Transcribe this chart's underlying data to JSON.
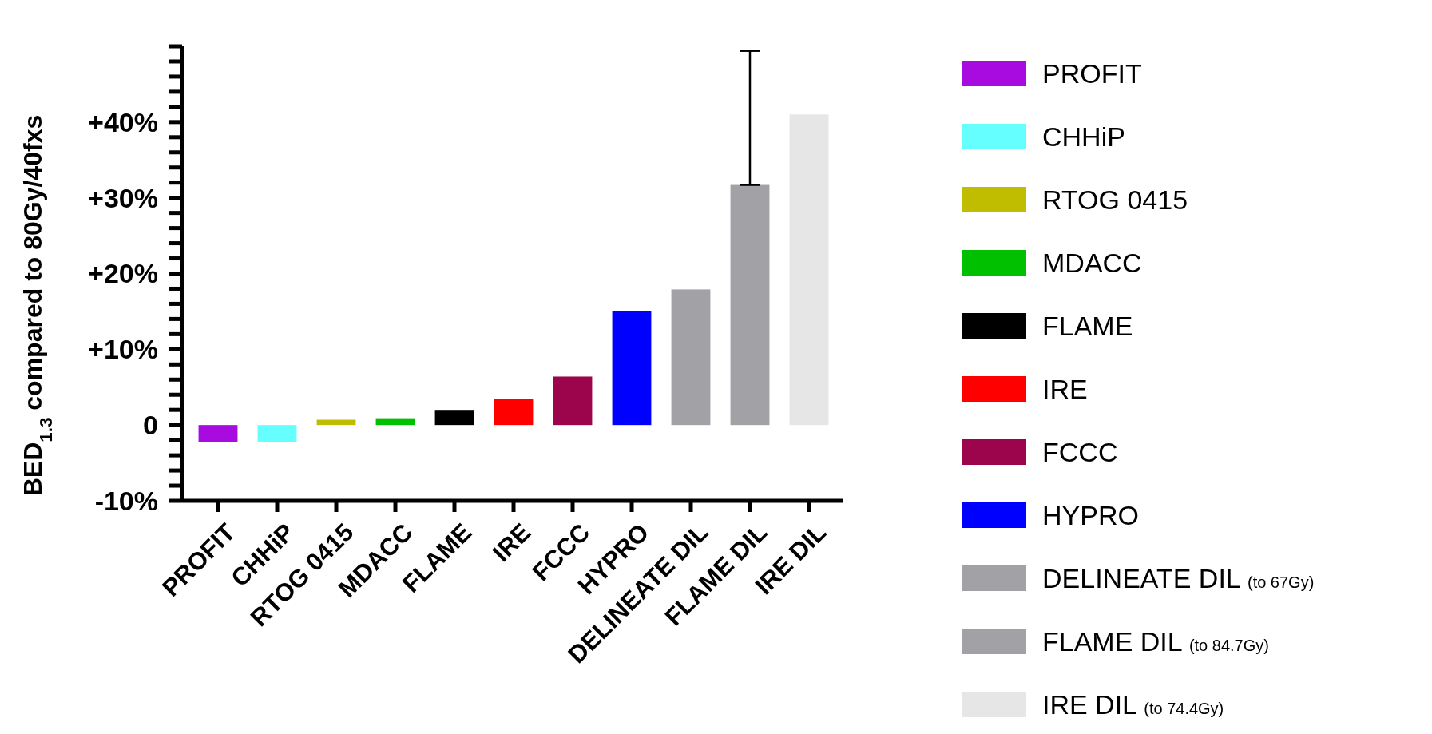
{
  "chart_data": {
    "type": "bar",
    "ylabel": "BED$_{1.3}$ compared to 80Gy/40fxs",
    "categories": [
      "PROFIT",
      "CHHiP",
      "RTOG 0415",
      "MDACC",
      "FLAME",
      "IRE",
      "FCCC",
      "HYPRO",
      "DELINEATE DIL",
      "FLAME DIL",
      "IRE DIL"
    ],
    "stacked": true,
    "series": [
      {
        "name": "PROFIT",
        "color": "#a80be0",
        "values": [
          -2.3,
          null,
          null,
          null,
          null,
          null,
          null,
          null,
          null,
          null,
          null
        ]
      },
      {
        "name": "CHHiP",
        "color": "#66ffff",
        "values": [
          null,
          -2.3,
          null,
          null,
          null,
          null,
          null,
          null,
          null,
          null,
          null
        ]
      },
      {
        "name": "RTOG 0415",
        "color": "#c0bc00",
        "values": [
          null,
          null,
          0.7,
          null,
          null,
          null,
          null,
          null,
          null,
          null,
          null
        ]
      },
      {
        "name": "MDACC",
        "color": "#00c000",
        "values": [
          null,
          null,
          null,
          0.9,
          null,
          null,
          null,
          null,
          null,
          null,
          null
        ]
      },
      {
        "name": "FLAME",
        "color": "#000000",
        "values": [
          null,
          null,
          null,
          null,
          2.0,
          null,
          null,
          null,
          null,
          null,
          null
        ]
      },
      {
        "name": "IRE",
        "color": "#ff0000",
        "values": [
          null,
          null,
          null,
          null,
          null,
          3.4,
          null,
          null,
          null,
          null,
          null
        ]
      },
      {
        "name": "FCCC",
        "color": "#9c054c",
        "values": [
          null,
          null,
          null,
          null,
          null,
          null,
          6.4,
          null,
          null,
          null,
          null
        ]
      },
      {
        "name": "HYPRO",
        "color": "#0000ff",
        "values": [
          null,
          null,
          null,
          null,
          null,
          null,
          null,
          15.0,
          null,
          null,
          null
        ]
      },
      {
        "name": "DELINEATE DIL (to 67Gy)",
        "color": "#a2a1a6",
        "values": [
          null,
          null,
          null,
          null,
          null,
          null,
          null,
          null,
          17.9,
          null,
          null
        ]
      },
      {
        "name": "FLAME DIL (to 84.7Gy)",
        "color": "#a2a1a6",
        "values": [
          null,
          null,
          null,
          null,
          null,
          null,
          null,
          null,
          null,
          31.7,
          null
        ],
        "errors": [
          null,
          null,
          null,
          null,
          null,
          null,
          null,
          null,
          null,
          [
            31.7,
            49.4
          ],
          null
        ]
      },
      {
        "name": "IRE DIL (to 74.4Gy)",
        "color": "#e6e6e6",
        "values": [
          null,
          null,
          null,
          null,
          null,
          null,
          null,
          null,
          null,
          null,
          41.0
        ]
      }
    ],
    "ylim": [
      -10,
      50
    ],
    "yticks": [
      {
        "value": -10,
        "label": "-10%"
      },
      {
        "value": -8,
        "label": null
      },
      {
        "value": -6,
        "label": null
      },
      {
        "value": -4,
        "label": null
      },
      {
        "value": -2,
        "label": null
      },
      {
        "value": 0,
        "label": "0"
      },
      {
        "value": 2,
        "label": null
      },
      {
        "value": 4,
        "label": null
      },
      {
        "value": 6,
        "label": null
      },
      {
        "value": 8,
        "label": null
      },
      {
        "value": 10,
        "label": "+10%"
      },
      {
        "value": 12,
        "label": null
      },
      {
        "value": 14,
        "label": null
      },
      {
        "value": 16,
        "label": null
      },
      {
        "value": 18,
        "label": null
      },
      {
        "value": 20,
        "label": "+20%"
      },
      {
        "value": 22,
        "label": null
      },
      {
        "value": 24,
        "label": null
      },
      {
        "value": 26,
        "label": null
      },
      {
        "value": 28,
        "label": null
      },
      {
        "value": 30,
        "label": "+30%"
      },
      {
        "value": 32,
        "label": null
      },
      {
        "value": 34,
        "label": null
      },
      {
        "value": 36,
        "label": null
      },
      {
        "value": 38,
        "label": null
      },
      {
        "value": 40,
        "label": "+40%"
      },
      {
        "value": 42,
        "label": null
      },
      {
        "value": 44,
        "label": null
      },
      {
        "value": 46,
        "label": null
      },
      {
        "value": 48,
        "label": null
      },
      {
        "value": 50,
        "label": null
      }
    ],
    "grid": false,
    "legend": "right"
  }
}
